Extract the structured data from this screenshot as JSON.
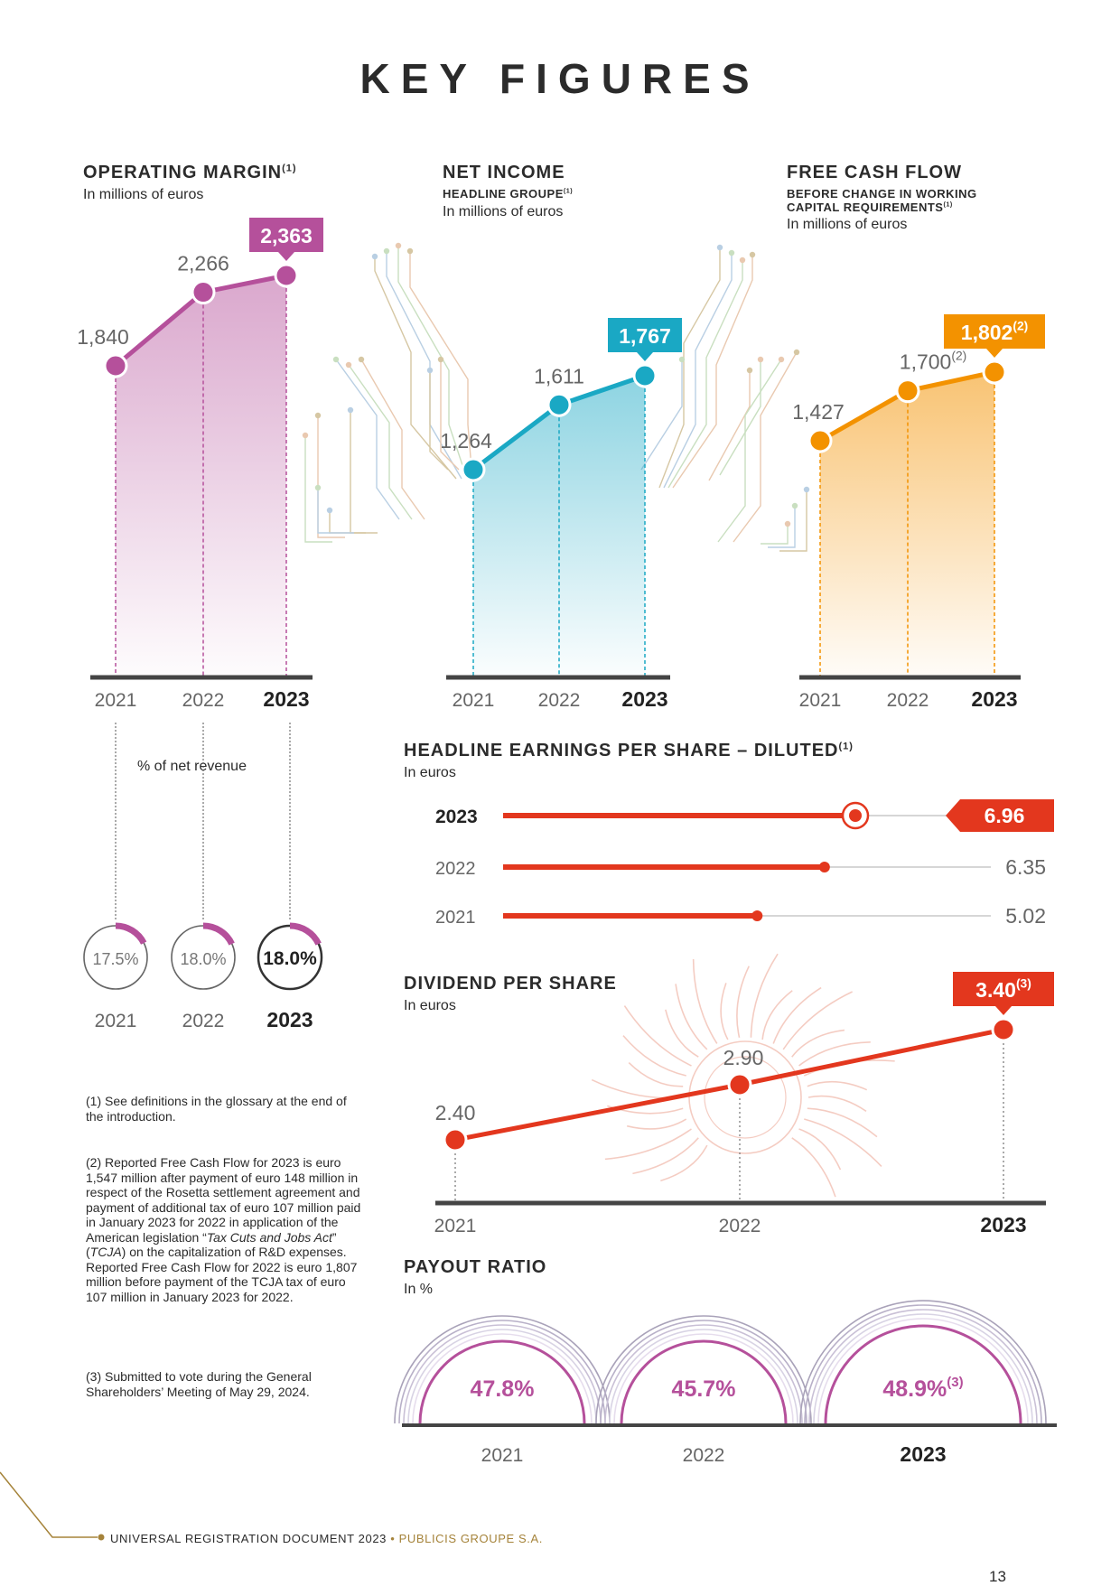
{
  "page_title": "KEY FIGURES",
  "panels": {
    "operating_margin": {
      "title": "OPERATING MARGIN",
      "title_note": "(1)",
      "unit": "In millions of euros",
      "subpanel_label": "% of net revenue"
    },
    "net_income": {
      "title": "NET INCOME",
      "subtitle": "HEADLINE GROUPE",
      "subtitle_note": "(1)",
      "unit": "In millions of euros"
    },
    "free_cash_flow": {
      "title": "FREE CASH FLOW",
      "subtitle_line1": "BEFORE CHANGE IN WORKING",
      "subtitle_line2": "CAPITAL REQUIREMENTS",
      "subtitle_note": "(1)",
      "unit": "In millions of euros"
    },
    "eps": {
      "title": "HEADLINE EARNINGS PER SHARE – DILUTED",
      "title_note": "(1)",
      "unit": "In euros"
    },
    "dividend": {
      "title": "DIVIDEND PER SHARE",
      "unit": "In euros"
    },
    "payout": {
      "title": "PAYOUT RATIO",
      "unit": "In %"
    }
  },
  "chart_data": [
    {
      "id": "operating_margin",
      "type": "area",
      "categories": [
        "2021",
        "2022",
        "2023"
      ],
      "values": [
        1840,
        2266,
        2363
      ],
      "labels": [
        "1,840",
        "2,266",
        "2,363"
      ],
      "highlight": "2023",
      "color": "#b5509b"
    },
    {
      "id": "net_income",
      "type": "area",
      "categories": [
        "2021",
        "2022",
        "2023"
      ],
      "values": [
        1264,
        1611,
        1767
      ],
      "labels": [
        "1,264",
        "1,611",
        "1,767"
      ],
      "highlight": "2023",
      "color": "#1aa8c4"
    },
    {
      "id": "free_cash_flow",
      "type": "area",
      "categories": [
        "2021",
        "2022",
        "2023"
      ],
      "values": [
        1427,
        1700,
        1802
      ],
      "labels": [
        "1,427",
        "1,700",
        "1,802"
      ],
      "label_notes": [
        "",
        "(2)",
        "(2)"
      ],
      "highlight": "2023",
      "color": "#f39200"
    },
    {
      "id": "operating_margin_rate",
      "type": "pie",
      "categories": [
        "2021",
        "2022",
        "2023"
      ],
      "values": [
        17.5,
        18.0,
        18.0
      ],
      "labels": [
        "17.5%",
        "18.0%",
        "18.0%"
      ],
      "highlight": "2023",
      "color": "#b5509b"
    },
    {
      "id": "headline_eps_diluted",
      "type": "bar",
      "orientation": "horizontal",
      "categories": [
        "2023",
        "2022",
        "2021"
      ],
      "values": [
        6.96,
        6.35,
        5.02
      ],
      "labels": [
        "6.96",
        "6.35",
        "5.02"
      ],
      "highlight": "2023",
      "color": "#e3371e"
    },
    {
      "id": "dividend_per_share",
      "type": "line",
      "categories": [
        "2021",
        "2022",
        "2023"
      ],
      "values": [
        2.4,
        2.9,
        3.4
      ],
      "labels": [
        "2.40",
        "2.90",
        "3.40"
      ],
      "label_notes": [
        "",
        "",
        "(3)"
      ],
      "highlight": "2023",
      "color": "#e3371e"
    },
    {
      "id": "payout_ratio",
      "type": "pie",
      "categories": [
        "2021",
        "2022",
        "2023"
      ],
      "values": [
        47.8,
        45.7,
        48.9
      ],
      "labels": [
        "47.8%",
        "45.7%",
        "48.9%"
      ],
      "label_notes": [
        "",
        "",
        "(3)"
      ],
      "highlight": "2023",
      "color": "#b5509b"
    }
  ],
  "footnotes": {
    "fn1": "(1) See definitions in the glossary at the end of the introduction.",
    "fn2_part1": "(2) Reported Free Cash Flow for 2023 is euro 1,547 million after payment of euro 148 million in respect of the Rosetta settlement agreement and payment of additional tax of euro 107 million paid in January 2023 for 2022 in application of the American legislation “",
    "fn2_em1": "Tax Cuts and Jobs Act",
    "fn2_part2": "” (",
    "fn2_em2": "TCJA",
    "fn2_part3": ") on the capitalization of R&D expenses. Reported Free Cash Flow for 2022 is euro 1,807 million before payment of the TCJA tax of euro 107 million in January 2023 for 2022.",
    "fn3": "(3) Submitted to vote during the General Shareholders’ Meeting of May 29, 2024."
  },
  "footer": {
    "text": "UNIVERSAL REGISTRATION DOCUMENT 2023",
    "separator": "•",
    "brand": "PUBLICIS GROUPE S.A.",
    "page_number": "13"
  }
}
